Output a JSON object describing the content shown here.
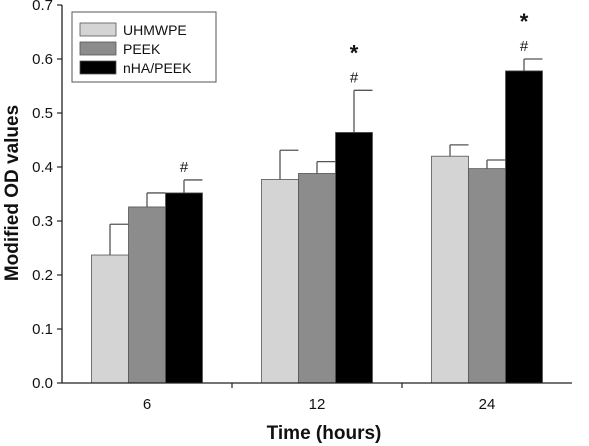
{
  "chart_data": {
    "type": "bar",
    "title": "",
    "xlabel": "Time (hours)",
    "ylabel": "Modified OD values",
    "ylim": [
      0,
      0.7
    ],
    "yticks": [
      "0.0",
      "0.1",
      "0.2",
      "0.3",
      "0.4",
      "0.5",
      "0.6",
      "0.7"
    ],
    "categories": [
      "6",
      "12",
      "24"
    ],
    "legend_position": "top-left",
    "series": [
      {
        "name": "UHMWPE",
        "color": "#d4d4d4",
        "values": [
          0.237,
          0.377,
          0.42
        ],
        "errors": [
          0.057,
          0.054,
          0.021
        ]
      },
      {
        "name": "PEEK",
        "color": "#8c8c8c",
        "values": [
          0.326,
          0.388,
          0.397
        ],
        "errors": [
          0.026,
          0.022,
          0.016
        ]
      },
      {
        "name": "nHA/PEEK",
        "color": "#000000",
        "values": [
          0.352,
          0.464,
          0.578
        ],
        "errors": [
          0.024,
          0.078,
          0.022
        ]
      }
    ],
    "annotations": [
      {
        "category": 0,
        "series": 2,
        "symbols": [
          "#"
        ]
      },
      {
        "category": 1,
        "series": 2,
        "symbols": [
          "#",
          "*"
        ]
      },
      {
        "category": 2,
        "series": 2,
        "symbols": [
          "#",
          "*"
        ]
      }
    ]
  }
}
